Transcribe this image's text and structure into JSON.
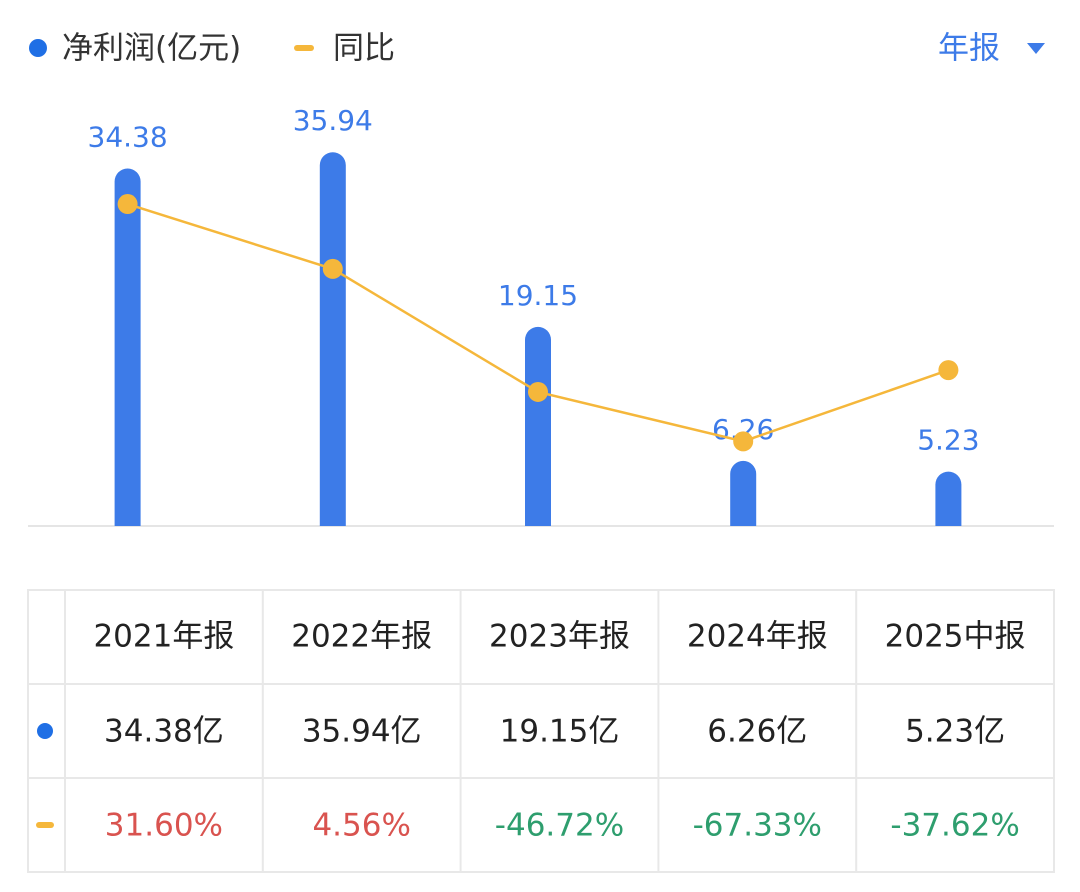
{
  "chart_data": {
    "type": "bar",
    "legend": "top-left",
    "period_selector": "年报",
    "categories": [
      "2021年报",
      "2022年报",
      "2023年报",
      "2024年报",
      "2025中报"
    ],
    "ylim": [
      0,
      40
    ],
    "y2lim": [
      -102.6,
      70.8
    ],
    "series": [
      {
        "name": "净利润(亿元)",
        "type": "bar",
        "color": "#3d7be8",
        "values": [
          34.38,
          35.94,
          19.15,
          6.26,
          5.23
        ],
        "value_labels": [
          "34.38亿",
          "35.94亿",
          "19.15亿",
          "6.26亿",
          "5.23亿"
        ]
      },
      {
        "name": "同比",
        "type": "line",
        "axis": "y2",
        "color": "#f5b73b",
        "values": [
          31.6,
          4.56,
          -46.72,
          -67.33,
          -37.62
        ],
        "value_labels": [
          "31.60%",
          "4.56%",
          "-46.72%",
          "-67.33%",
          "-37.62%"
        ]
      }
    ]
  }
}
